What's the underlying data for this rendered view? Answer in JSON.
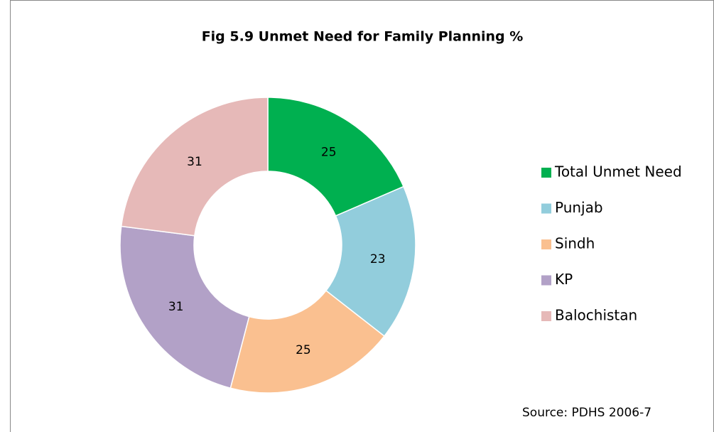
{
  "chart_data": {
    "type": "donut",
    "title": "Fig 5.9 Unmet Need for Family Planning %",
    "categories": [
      "Total Unmet Need",
      "Punjab",
      "Sindh",
      "KP",
      "Balochistan"
    ],
    "values": [
      25,
      23,
      25,
      31,
      31
    ],
    "colors": [
      "#00b050",
      "#92cddc",
      "#fac090",
      "#b2a1c7",
      "#e6b9b8"
    ],
    "legend": "right",
    "source": "Source: PDHS 2006-7"
  }
}
